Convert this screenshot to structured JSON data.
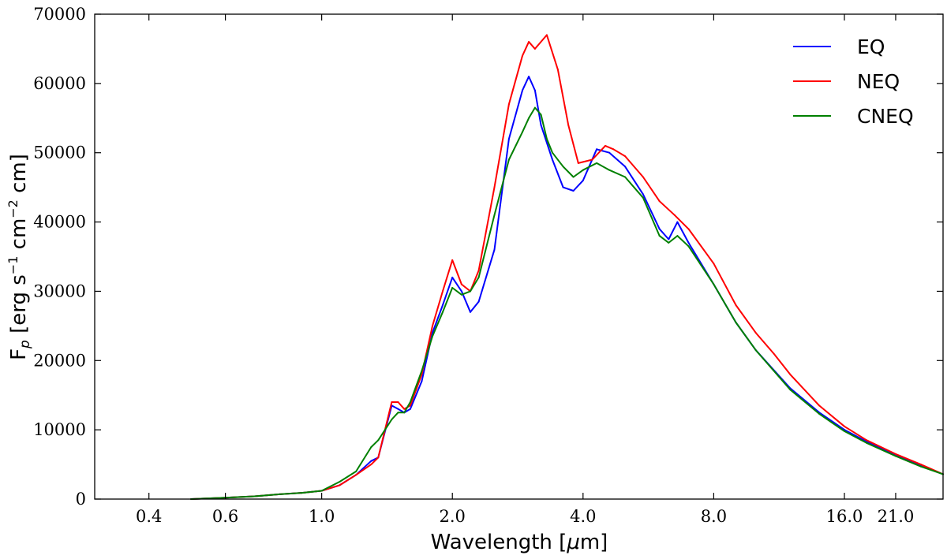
{
  "chart_data": {
    "type": "line",
    "title": "",
    "xlabel": "Wavelength [μm]",
    "ylabel": "F_p [erg s^-1 cm^-2 cm]",
    "ylabel_parts": {
      "main": "F",
      "sub": "p",
      "unit_a": " [erg s",
      "exp_a": "−1",
      "unit_b": " cm",
      "exp_b": "−2",
      "unit_c": " cm]"
    },
    "xlabel_parts": {
      "main": "Wavelength [",
      "mu": "μ",
      "unit": "m]"
    },
    "xscale": "log",
    "xlim": [
      0.3,
      27.0
    ],
    "ylim": [
      0,
      70000
    ],
    "xticks": [
      0.4,
      0.6,
      1.0,
      2.0,
      4.0,
      8.0,
      16.0,
      21.0
    ],
    "xtick_labels": [
      "0.4",
      "0.6",
      "1.0",
      "2.0",
      "4.0",
      "8.0",
      "16.0",
      "21.0"
    ],
    "yticks": [
      0,
      10000,
      20000,
      30000,
      40000,
      50000,
      60000,
      70000
    ],
    "ytick_labels": [
      "0",
      "10000",
      "20000",
      "30000",
      "40000",
      "50000",
      "60000",
      "70000"
    ],
    "legend_position": "top-right",
    "grid": false,
    "series": [
      {
        "name": "EQ",
        "color": "#0000ff",
        "x": [
          0.5,
          0.6,
          0.7,
          0.8,
          0.9,
          1.0,
          1.1,
          1.2,
          1.3,
          1.35,
          1.45,
          1.5,
          1.55,
          1.6,
          1.7,
          1.8,
          1.9,
          2.0,
          2.1,
          2.2,
          2.3,
          2.5,
          2.7,
          2.9,
          3.0,
          3.1,
          3.2,
          3.4,
          3.6,
          3.8,
          4.0,
          4.3,
          4.6,
          5.0,
          5.5,
          6.0,
          6.3,
          6.6,
          7.0,
          8.0,
          9.0,
          10.0,
          12.0,
          14.0,
          16.0,
          18.0,
          21.0,
          24.0,
          27.0
        ],
        "values": [
          0,
          200,
          400,
          700,
          900,
          1200,
          2000,
          3500,
          5500,
          6000,
          13500,
          13000,
          12500,
          13000,
          17000,
          24000,
          28000,
          32000,
          30000,
          27000,
          28500,
          36000,
          52000,
          59000,
          61000,
          59000,
          54000,
          49000,
          45000,
          44500,
          46000,
          50500,
          50000,
          48000,
          44000,
          39000,
          37500,
          40000,
          37000,
          31000,
          25500,
          21500,
          16000,
          12500,
          10000,
          8300,
          6300,
          4800,
          3600
        ]
      },
      {
        "name": "NEQ",
        "color": "#ff0000",
        "x": [
          0.5,
          0.6,
          0.7,
          0.8,
          0.9,
          1.0,
          1.1,
          1.2,
          1.3,
          1.35,
          1.45,
          1.5,
          1.55,
          1.6,
          1.7,
          1.8,
          1.9,
          2.0,
          2.1,
          2.2,
          2.3,
          2.5,
          2.7,
          2.9,
          3.0,
          3.1,
          3.3,
          3.5,
          3.7,
          3.9,
          4.2,
          4.5,
          4.7,
          5.0,
          5.5,
          6.0,
          6.5,
          7.0,
          8.0,
          9.0,
          10.0,
          11.0,
          12.0,
          14.0,
          16.0,
          18.0,
          21.0,
          24.0,
          27.0
        ],
        "values": [
          0,
          200,
          400,
          700,
          900,
          1200,
          2000,
          3500,
          5000,
          6000,
          14000,
          14000,
          13000,
          13500,
          18000,
          25000,
          30000,
          34500,
          31000,
          30000,
          33000,
          45000,
          57000,
          64000,
          66000,
          65000,
          67000,
          62000,
          54000,
          48500,
          49000,
          51000,
          50500,
          49500,
          46500,
          43000,
          41000,
          39000,
          34000,
          28000,
          24000,
          21000,
          18000,
          13500,
          10500,
          8500,
          6500,
          5000,
          3600
        ]
      },
      {
        "name": "CNEQ",
        "color": "#008000",
        "x": [
          0.5,
          0.6,
          0.7,
          0.8,
          0.9,
          1.0,
          1.1,
          1.2,
          1.3,
          1.35,
          1.45,
          1.5,
          1.55,
          1.6,
          1.7,
          1.8,
          1.9,
          2.0,
          2.1,
          2.2,
          2.3,
          2.5,
          2.7,
          2.9,
          3.0,
          3.1,
          3.2,
          3.3,
          3.4,
          3.6,
          3.8,
          4.0,
          4.3,
          4.6,
          5.0,
          5.5,
          6.0,
          6.3,
          6.6,
          7.0,
          8.0,
          9.0,
          10.0,
          12.0,
          14.0,
          16.0,
          18.0,
          21.0,
          24.0,
          27.0
        ],
        "values": [
          0,
          200,
          400,
          700,
          900,
          1200,
          2500,
          4000,
          7500,
          8500,
          11500,
          12500,
          12500,
          14000,
          18500,
          23500,
          27000,
          30500,
          29500,
          30000,
          32000,
          41000,
          49000,
          53000,
          55000,
          56500,
          55500,
          52000,
          50000,
          48000,
          46500,
          47500,
          48500,
          47500,
          46500,
          43500,
          38000,
          37000,
          38000,
          36500,
          31000,
          25500,
          21500,
          15800,
          12300,
          9800,
          8100,
          6200,
          4700,
          3600
        ]
      }
    ]
  }
}
